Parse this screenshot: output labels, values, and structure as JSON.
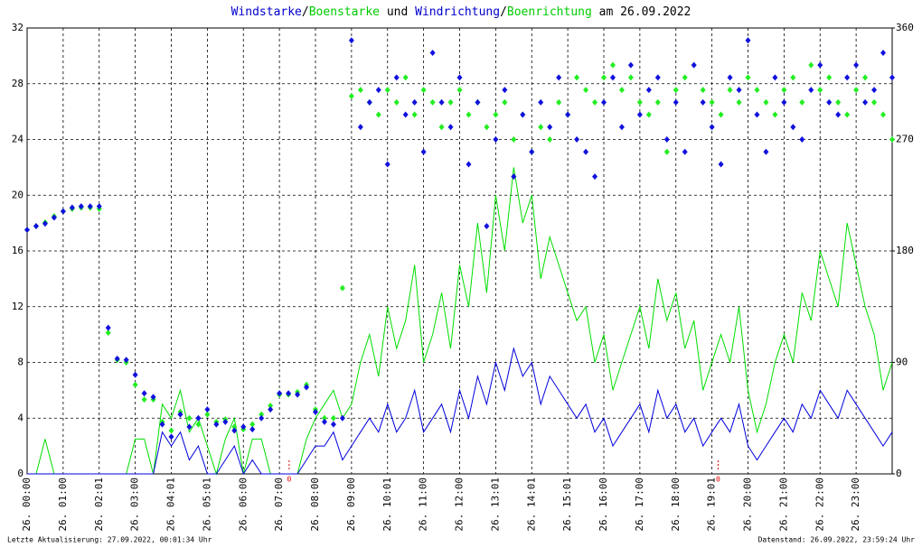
{
  "chart_data": {
    "type": "line",
    "title_parts": [
      {
        "text": "Windstarke",
        "color": "#0000cc"
      },
      {
        "text": "/",
        "color": "#000000"
      },
      {
        "text": "Boenstarke",
        "color": "#00cc00"
      },
      {
        "text": " und ",
        "color": "#000000"
      },
      {
        "text": "Windrichtung",
        "color": "#0000cc"
      },
      {
        "text": "/",
        "color": "#000000"
      },
      {
        "text": "Boenrichtung",
        "color": "#00cc00"
      },
      {
        "text": " am 26.09.2022",
        "color": "#000000"
      }
    ],
    "footer_left": "Letzte Aktualisierung: 27.09.2022, 00:01:34 Uhr",
    "footer_right": "Datenstand: 26.09.2022, 23:59:24 Uhr",
    "xlim": [
      0,
      24
    ],
    "xticks": [
      {
        "value": 0,
        "label": "26. 00:00"
      },
      {
        "value": 1,
        "label": "26. 01:00"
      },
      {
        "value": 2,
        "label": "26. 02:01"
      },
      {
        "value": 3,
        "label": "26. 03:00"
      },
      {
        "value": 4,
        "label": "26. 04:01"
      },
      {
        "value": 5,
        "label": "26. 05:01"
      },
      {
        "value": 6,
        "label": "26. 06:00"
      },
      {
        "value": 7,
        "label": "26. 07:00"
      },
      {
        "value": 8,
        "label": "26. 08:00"
      },
      {
        "value": 9,
        "label": "26. 09:00"
      },
      {
        "value": 10,
        "label": "26. 10:01"
      },
      {
        "value": 11,
        "label": "26. 11:00"
      },
      {
        "value": 12,
        "label": "26. 12:00"
      },
      {
        "value": 13,
        "label": "26. 13:01"
      },
      {
        "value": 14,
        "label": "26. 14:01"
      },
      {
        "value": 15,
        "label": "26. 15:01"
      },
      {
        "value": 16,
        "label": "26. 16:00"
      },
      {
        "value": 17,
        "label": "26. 17:00"
      },
      {
        "value": 18,
        "label": "26. 18:00"
      },
      {
        "value": 19,
        "label": "26. 19:01"
      },
      {
        "value": 20,
        "label": "26. 20:00"
      },
      {
        "value": 21,
        "label": "26. 21:00"
      },
      {
        "value": 22,
        "label": "26. 22:00"
      },
      {
        "value": 23,
        "label": "26. 23:00"
      }
    ],
    "ylim": [
      0,
      32
    ],
    "yticks": [
      0,
      4,
      8,
      12,
      16,
      20,
      24,
      28,
      32
    ],
    "y2lim": [
      0,
      360
    ],
    "y2ticks": [
      0,
      90,
      180,
      270,
      360
    ],
    "grid": true,
    "annotations": [
      {
        "x": 7.27,
        "text": "0",
        "color": "#dd0000"
      },
      {
        "x": 19.17,
        "text": "0",
        "color": "#dd0000"
      }
    ],
    "x": [
      0,
      0.25,
      0.5,
      0.75,
      1,
      1.25,
      1.5,
      1.75,
      2,
      2.25,
      2.5,
      2.75,
      3,
      3.25,
      3.5,
      3.75,
      4,
      4.25,
      4.5,
      4.75,
      5,
      5.25,
      5.5,
      5.75,
      6,
      6.25,
      6.5,
      6.75,
      7,
      7.25,
      7.5,
      7.75,
      8,
      8.25,
      8.5,
      8.75,
      9,
      9.25,
      9.5,
      9.75,
      10,
      10.25,
      10.5,
      10.75,
      11,
      11.25,
      11.5,
      11.75,
      12,
      12.25,
      12.5,
      12.75,
      13,
      13.25,
      13.5,
      13.75,
      14,
      14.25,
      14.5,
      14.75,
      15,
      15.25,
      15.5,
      15.75,
      16,
      16.25,
      16.5,
      16.75,
      17,
      17.25,
      17.5,
      17.75,
      18,
      18.25,
      18.5,
      18.75,
      19,
      19.25,
      19.5,
      19.75,
      20,
      20.25,
      20.5,
      20.75,
      21,
      21.25,
      21.5,
      21.75,
      22,
      22.25,
      22.5,
      22.75,
      23,
      23.25,
      23.5,
      23.75,
      24
    ],
    "series": [
      {
        "type": "line",
        "color": "#00dd00",
        "values": [
          0,
          0,
          2.5,
          0,
          0,
          0,
          0,
          0,
          0,
          0,
          0,
          0,
          2.5,
          2.5,
          0,
          5,
          4,
          6,
          3,
          4,
          2,
          0,
          2.5,
          4,
          0,
          2.5,
          2.5,
          0,
          0,
          0,
          0,
          2.5,
          4,
          5,
          6,
          4,
          5,
          8,
          10,
          7,
          12,
          9,
          11,
          15,
          8,
          10,
          13,
          9,
          15,
          12,
          18,
          13,
          20,
          16,
          22,
          18,
          20,
          14,
          17,
          15,
          13,
          11,
          12,
          8,
          10,
          6,
          8,
          10,
          12,
          9,
          14,
          11,
          13,
          9,
          11,
          6,
          8,
          10,
          8,
          12,
          6,
          3,
          5,
          8,
          10,
          8,
          13,
          11,
          16,
          14,
          12,
          18,
          15,
          12,
          10,
          6,
          8
        ]
      },
      {
        "type": "line",
        "color": "#0000dd",
        "values": [
          0,
          0,
          0,
          0,
          0,
          0,
          0,
          0,
          0,
          0,
          0,
          0,
          0,
          0,
          0,
          3,
          2,
          3,
          1,
          2,
          0,
          0,
          1,
          2,
          0,
          1,
          0,
          0,
          0,
          0,
          0,
          1,
          2,
          2,
          3,
          1,
          2,
          3,
          4,
          3,
          5,
          3,
          4,
          6,
          3,
          4,
          5,
          3,
          6,
          4,
          7,
          5,
          8,
          6,
          9,
          7,
          8,
          5,
          7,
          6,
          5,
          4,
          5,
          3,
          4,
          2,
          3,
          4,
          5,
          3,
          6,
          4,
          5,
          3,
          4,
          2,
          3,
          4,
          3,
          5,
          2,
          1,
          2,
          3,
          4,
          3,
          5,
          4,
          6,
          5,
          4,
          6,
          5,
          4,
          3,
          2,
          3
        ]
      },
      {
        "type": "scatter",
        "axis": "y2",
        "color": "#22ee22",
        "values": [
          197,
          200,
          203,
          208,
          212,
          214,
          215,
          215,
          214,
          114,
          92,
          90,
          72,
          60,
          60,
          42,
          35,
          50,
          45,
          40,
          48,
          42,
          44,
          38,
          36,
          40,
          48,
          55,
          64,
          64,
          66,
          72,
          52,
          45,
          45,
          150,
          305,
          310,
          300,
          290,
          310,
          300,
          320,
          290,
          310,
          300,
          280,
          300,
          310,
          290,
          300,
          280,
          290,
          300,
          270,
          290,
          260,
          280,
          270,
          300,
          290,
          320,
          310,
          300,
          320,
          330,
          310,
          320,
          300,
          290,
          300,
          260,
          310,
          320,
          330,
          310,
          300,
          290,
          310,
          300,
          320,
          310,
          300,
          290,
          310,
          320,
          300,
          330,
          310,
          320,
          300,
          290,
          310,
          320,
          300,
          290,
          270
        ]
      },
      {
        "type": "scatter",
        "axis": "y2",
        "color": "#1111dd",
        "values": [
          197,
          200,
          202,
          207,
          212,
          215,
          216,
          216,
          216,
          118,
          93,
          92,
          80,
          65,
          62,
          40,
          30,
          48,
          38,
          45,
          52,
          40,
          42,
          35,
          38,
          36,
          45,
          52,
          65,
          65,
          64,
          70,
          50,
          42,
          40,
          45,
          350,
          280,
          300,
          310,
          250,
          320,
          290,
          300,
          260,
          340,
          300,
          280,
          320,
          250,
          300,
          200,
          270,
          310,
          240,
          290,
          260,
          300,
          280,
          320,
          290,
          270,
          260,
          240,
          300,
          320,
          280,
          330,
          290,
          310,
          320,
          270,
          300,
          260,
          330,
          300,
          280,
          250,
          320,
          310,
          350,
          290,
          260,
          320,
          300,
          280,
          270,
          310,
          330,
          300,
          290,
          320,
          330,
          300,
          310,
          340,
          320
        ]
      }
    ]
  }
}
